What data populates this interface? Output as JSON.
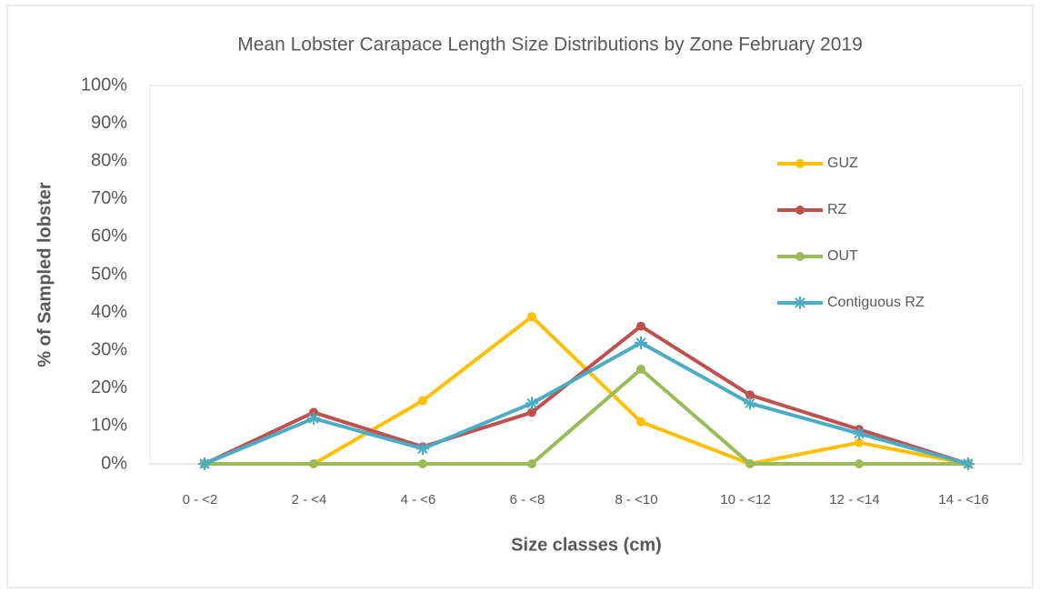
{
  "chart_data": {
    "type": "line",
    "title": "Mean Lobster Carapace Length Size Distributions by Zone February 2019",
    "x_label": "Size classes (cm)",
    "y_label": "% of Sampled lobster",
    "categories": [
      "0 - <2",
      "2 - <4",
      "4 - <6",
      "6 - <8",
      "8 - <10",
      "10 - <12",
      "12 - <14",
      "14 - <16"
    ],
    "series": [
      {
        "name": "GUZ",
        "color": "#ffc000",
        "marker": "circle",
        "values": [
          0,
          0,
          16.7,
          38.9,
          11.1,
          0,
          5.6,
          0
        ]
      },
      {
        "name": "RZ",
        "color": "#c0504d",
        "marker": "circle",
        "values": [
          0,
          13.6,
          4.5,
          13.6,
          36.4,
          18.2,
          9.1,
          0
        ]
      },
      {
        "name": "OUT",
        "color": "#9bbb59",
        "marker": "circle",
        "values": [
          0,
          0,
          0,
          0,
          25,
          0,
          0,
          0
        ]
      },
      {
        "name": "Contiguous RZ",
        "color": "#4bacc6",
        "marker": "asterisk",
        "values": [
          0,
          12,
          4,
          16,
          32,
          16,
          8,
          0
        ]
      }
    ],
    "ylim": [
      0,
      100
    ],
    "yticks": [
      {
        "value": 0,
        "label": "0%"
      },
      {
        "value": 10,
        "label": "10%"
      },
      {
        "value": 20,
        "label": "20%"
      },
      {
        "value": 30,
        "label": "30%"
      },
      {
        "value": 40,
        "label": "40%"
      },
      {
        "value": 50,
        "label": "50%"
      },
      {
        "value": 60,
        "label": "60%"
      },
      {
        "value": 70,
        "label": "70%"
      },
      {
        "value": 80,
        "label": "80%"
      },
      {
        "value": 90,
        "label": "90%"
      },
      {
        "value": 100,
        "label": "100%"
      }
    ],
    "grid": false,
    "legend": "right"
  }
}
